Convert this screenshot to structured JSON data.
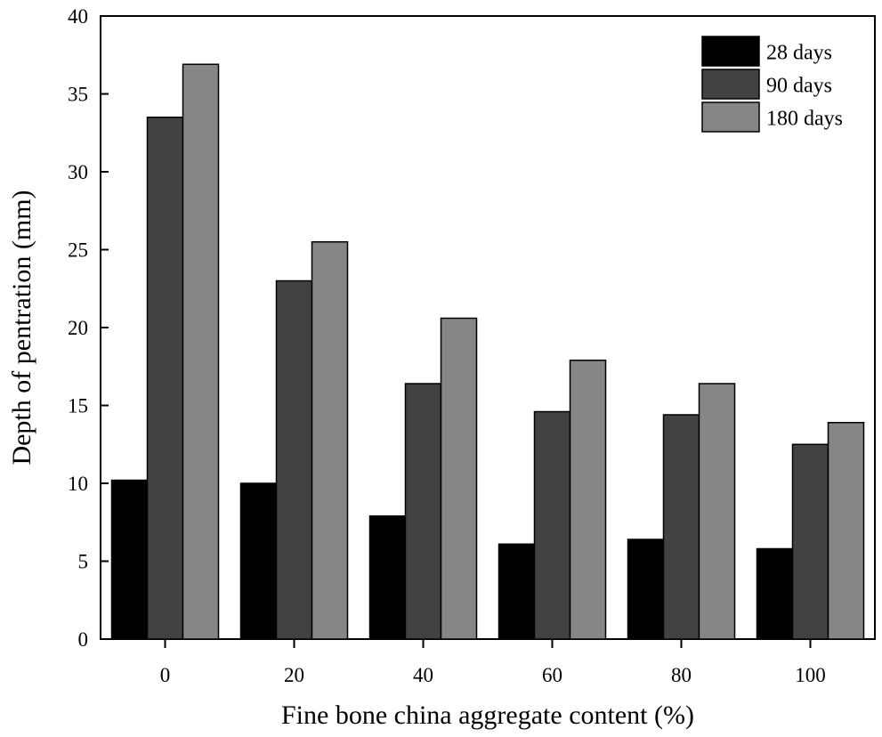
{
  "chart_data": {
    "type": "bar",
    "title": "",
    "xlabel": "Fine bone china aggregate content (%)",
    "ylabel": "Depth of pentration (mm)",
    "categories": [
      "0",
      "20",
      "40",
      "60",
      "80",
      "100"
    ],
    "ylim": [
      0,
      40
    ],
    "yticks": [
      "0",
      "5",
      "10",
      "15",
      "20",
      "25",
      "30",
      "35",
      "40"
    ],
    "legend_position": "top-right",
    "series": [
      {
        "name": "28 days",
        "color": "#000000",
        "values": [
          10.2,
          10.0,
          7.9,
          6.1,
          6.4,
          5.8
        ]
      },
      {
        "name": "90 days",
        "color": "#424242",
        "values": [
          33.5,
          23.0,
          16.4,
          14.6,
          14.4,
          12.5
        ]
      },
      {
        "name": "180 days",
        "color": "#868686",
        "values": [
          36.9,
          25.5,
          20.6,
          17.9,
          16.4,
          13.9
        ]
      }
    ]
  }
}
